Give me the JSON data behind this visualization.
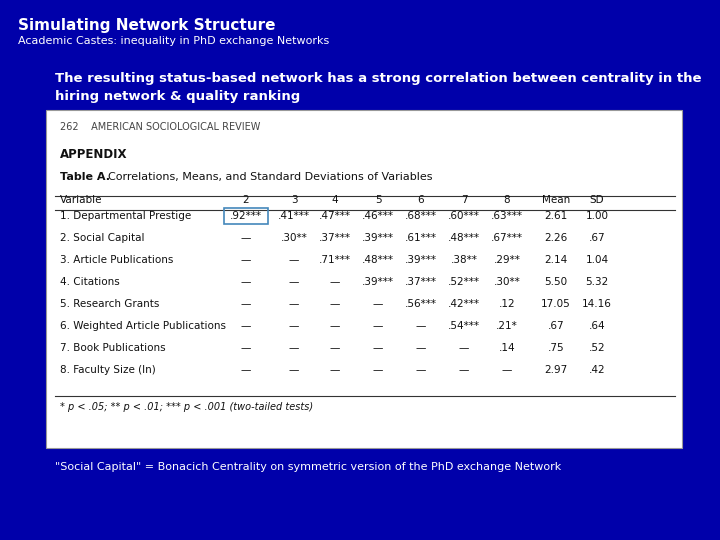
{
  "bg_color": "#0000AA",
  "title_bold": "Simulating Network Structure",
  "title_sub": "Academic Castes: inequality in PhD exchange Networks",
  "body_line1": "The resulting status-based network has a strong correlation between centrality in the",
  "body_line2": "hiring network & quality ranking",
  "footnote": "\"Social Capital\" = Bonacich Centrality on symmetric version of the PhD exchange Network",
  "journal_header": "262    AMERICAN SOCIOLOGICAL REVIEW",
  "appendix_label": "APPENDIX",
  "table_label": "Table A.",
  "table_desc": "Correlations, Means, and Standard Deviations of Variables",
  "col_headers": [
    "Variable",
    "2",
    "3",
    "4",
    "5",
    "6",
    "7",
    "8",
    "Mean",
    "SD"
  ],
  "rows": [
    [
      "1. Departmental Prestige",
      ".92***",
      ".41***",
      ".47***",
      ".46***",
      ".68***",
      ".60***",
      ".63***",
      "2.61",
      "1.00"
    ],
    [
      "2. Social Capital",
      "—",
      ".30**",
      ".37***",
      ".39***",
      ".61***",
      ".48***",
      ".67***",
      "2.26",
      ".67"
    ],
    [
      "3. Article Publications",
      "—",
      "—",
      ".71***",
      ".48***",
      ".39***",
      ".38**",
      ".29**",
      "2.14",
      "1.04"
    ],
    [
      "4. Citations",
      "—",
      "—",
      "—",
      ".39***",
      ".37***",
      ".52***",
      ".30**",
      "5.50",
      "5.32"
    ],
    [
      "5. Research Grants",
      "—",
      "—",
      "—",
      "—",
      ".56***",
      ".42***",
      ".12",
      "17.05",
      "14.16"
    ],
    [
      "6. Weighted Article Publications",
      "—",
      "—",
      "—",
      "—",
      "—",
      ".54***",
      ".21*",
      ".67",
      ".64"
    ],
    [
      "7. Book Publications",
      "—",
      "—",
      "—",
      "—",
      "—",
      "—",
      ".14",
      ".75",
      ".52"
    ],
    [
      "8. Faculty Size (ln)",
      "—",
      "—",
      "—",
      "—",
      "—",
      "—",
      "—",
      "2.97",
      ".42"
    ]
  ],
  "sig_note": "* p < .05; ** p < .01; *** p < .001 (two-tailed tests)",
  "highlighted_cell": [
    0,
    1
  ],
  "white_color": "#ffffff",
  "table_text": "#111111",
  "highlight_box_color": "#4488bb"
}
